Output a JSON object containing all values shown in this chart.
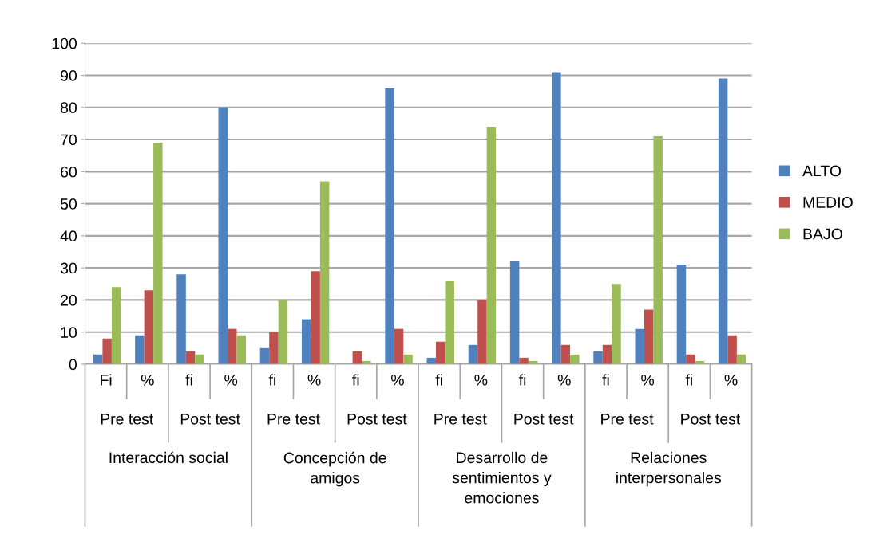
{
  "chart_data": {
    "type": "bar",
    "categories": [
      "Fi",
      "%",
      "fi",
      "%",
      "fi",
      "%",
      "fi",
      "%",
      "fi",
      "%",
      "fi",
      "%",
      "fi",
      "%",
      "fi",
      "%"
    ],
    "series": [
      {
        "name": "ALTO",
        "color": "#4f81bd",
        "values": [
          3,
          9,
          28,
          80,
          5,
          14,
          0,
          86,
          2,
          6,
          32,
          91,
          4,
          11,
          31,
          89
        ]
      },
      {
        "name": "MEDIO",
        "color": "#c0504d",
        "values": [
          8,
          23,
          4,
          11,
          10,
          29,
          4,
          11,
          7,
          20,
          2,
          6,
          6,
          17,
          3,
          9
        ]
      },
      {
        "name": "BAJO",
        "color": "#9bbb59",
        "values": [
          24,
          69,
          3,
          9,
          20,
          57,
          1,
          3,
          26,
          74,
          1,
          3,
          25,
          71,
          1,
          3
        ]
      }
    ],
    "annotations": [
      "Pre test",
      "Post test",
      "Pre test",
      "Post test",
      "Pre test",
      "Post test",
      "Pre test",
      "Post test",
      "Interacción social",
      "Concepción de amigos",
      "Desarrollo de sentimientos y emociones",
      "Relaciones interpersonales"
    ],
    "ylim": [
      0,
      100
    ],
    "yticks": [
      0,
      10,
      20,
      30,
      40,
      50,
      60,
      70,
      80,
      90,
      100
    ],
    "grid": "y",
    "legend": "right"
  }
}
